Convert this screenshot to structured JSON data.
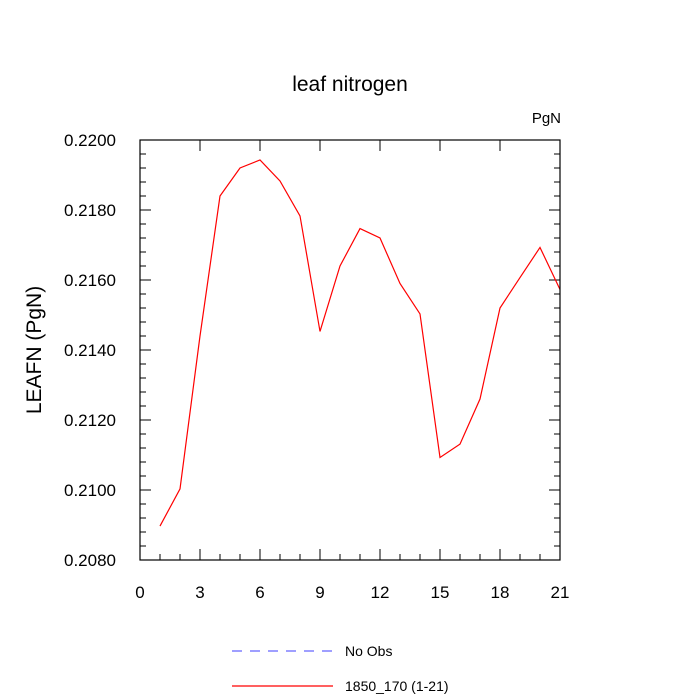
{
  "chart_data": {
    "type": "line",
    "title": "leaf nitrogen",
    "units": "PgN",
    "xlabel": "",
    "ylabel": "LEAFN  (PgN)",
    "xlim": [
      0,
      21
    ],
    "ylim": [
      0.208,
      0.22
    ],
    "x_ticks": [
      0,
      3,
      6,
      9,
      12,
      15,
      18,
      21
    ],
    "x_tick_labels": [
      "0",
      "3",
      "6",
      "9",
      "12",
      "15",
      "18",
      "21"
    ],
    "y_ticks": [
      0.208,
      0.21,
      0.212,
      0.214,
      0.216,
      0.218,
      0.22
    ],
    "y_tick_labels": [
      "0.2080",
      "0.2100",
      "0.2120",
      "0.2140",
      "0.2160",
      "0.2180",
      "0.2200"
    ],
    "grid": false,
    "legend_position": "bottom",
    "series": [
      {
        "name": "1850_170 (1-21)",
        "color": "#ff0000",
        "style": "solid",
        "x": [
          1,
          2,
          3,
          4,
          5,
          6,
          7,
          8,
          9,
          10,
          11,
          12,
          13,
          14,
          15,
          16,
          17,
          18,
          19,
          20,
          21
        ],
        "y": [
          0.20897,
          0.21003,
          0.2144,
          0.2184,
          0.2192,
          0.21943,
          0.21883,
          0.21783,
          0.21453,
          0.2164,
          0.21747,
          0.2172,
          0.2159,
          0.21503,
          0.21093,
          0.21131,
          0.2126,
          0.2152,
          0.21607,
          0.21693,
          0.21573
        ]
      },
      {
        "name": "No Obs",
        "color": "#6666ff",
        "style": "dashed",
        "x": [],
        "y": []
      }
    ]
  }
}
